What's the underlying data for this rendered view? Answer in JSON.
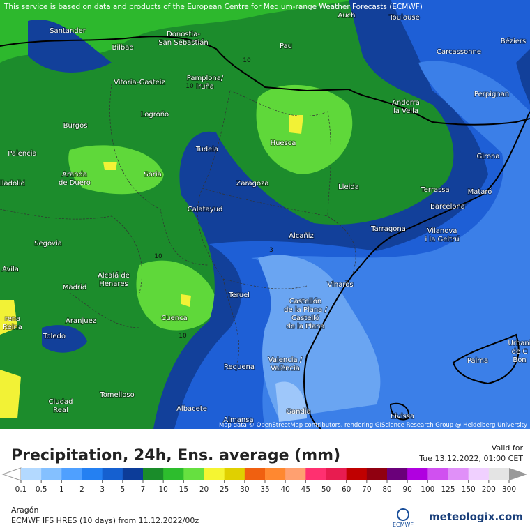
{
  "header": {
    "attribution": "This service is based on data and products of the European Centre for Medium-range Weather Forecasts (ECMWF)"
  },
  "map": {
    "cities": [
      [
        "Santander"
      ],
      [
        "Bilbao"
      ],
      [
        "Donostia-",
        "San Sebastián"
      ],
      [
        "Pau"
      ],
      [
        "Auch"
      ],
      [
        "Toulouse"
      ],
      [
        "Béziers"
      ],
      [
        "Carcassonne"
      ],
      [
        "Vitoria-Gasteiz"
      ],
      [
        "Pamplona/",
        "Iruña"
      ],
      [
        "Andorra",
        "la Vella"
      ],
      [
        "Perpignan"
      ],
      [
        "Logroño"
      ],
      [
        "Burgos"
      ],
      [
        "Huesca"
      ],
      [
        "Tudela"
      ],
      [
        "Palencia"
      ],
      [
        "Girona"
      ],
      [
        "Aranda",
        "de Duero"
      ],
      [
        "Soria"
      ],
      [
        "Zaragoza"
      ],
      [
        "Lleida"
      ],
      [
        "Terrassa"
      ],
      [
        "Mataró"
      ],
      [
        "lladolid"
      ],
      [
        "Barcelona"
      ],
      [
        "Calatayud"
      ],
      [
        "Tarragona"
      ],
      [
        "Vilanova",
        "i la Geltrú"
      ],
      [
        "Alcañiz"
      ],
      [
        "Segovia"
      ],
      [
        "Avila"
      ],
      [
        "Alcalá de",
        "Henares"
      ],
      [
        "Madrid"
      ],
      [
        "Vinaròs"
      ],
      [
        "Teruel"
      ],
      [
        "Castellón",
        "de la Plana /",
        "Castelló",
        "de la Plana"
      ],
      [
        "rena",
        "Reina"
      ],
      [
        "Aranjuez"
      ],
      [
        "Cuenca"
      ],
      [
        "Toledo"
      ],
      [
        "Urbani",
        "de C",
        "Bon"
      ],
      [
        "Palma"
      ],
      [
        "Valencia /",
        "València"
      ],
      [
        "Requena"
      ],
      [
        "Ciudad",
        "Real"
      ],
      [
        "Tomelloso"
      ],
      [
        "Albacete"
      ],
      [
        "Gandia"
      ],
      [
        "Eivissa"
      ],
      [
        "Almansa"
      ]
    ],
    "contour_labels": [
      "10",
      "10",
      "10",
      "10",
      "3"
    ],
    "credits": "Map data © OpenStreetMap contributors, rendering GIScience Research Group @ Heidelberg University"
  },
  "footer": {
    "title": "Precipitation, 24h, Ens. average (mm)",
    "valid_label": "Valid for",
    "valid_time": "Tue 13.12.2022, 01:00 CET",
    "legend": {
      "ticks": [
        0.1,
        0.5,
        1,
        2,
        3,
        5,
        7,
        10,
        15,
        20,
        25,
        30,
        35,
        40,
        45,
        50,
        60,
        70,
        80,
        90,
        100,
        125,
        150,
        200,
        300
      ],
      "colors": [
        "#b3d9ff",
        "#84c0ff",
        "#4fa0ff",
        "#2480f2",
        "#1560d0",
        "#0c3c99",
        "#1a8c2a",
        "#2dbd2d",
        "#66e040",
        "#f5f532",
        "#e0d000",
        "#f06010",
        "#ff8830",
        "#ffa070",
        "#ff3070",
        "#e81c50",
        "#c00000",
        "#900010",
        "#6a007a",
        "#b000e0",
        "#d050f0",
        "#e090f8",
        "#f0d0ff",
        "#e4e4e4"
      ]
    },
    "region": "Aragón",
    "model_run": "ECMWF IFS HRES (10 days) from 11.12.2022/00z",
    "ecmwf_logo": "ECMWF",
    "brand": "meteologix.com"
  }
}
